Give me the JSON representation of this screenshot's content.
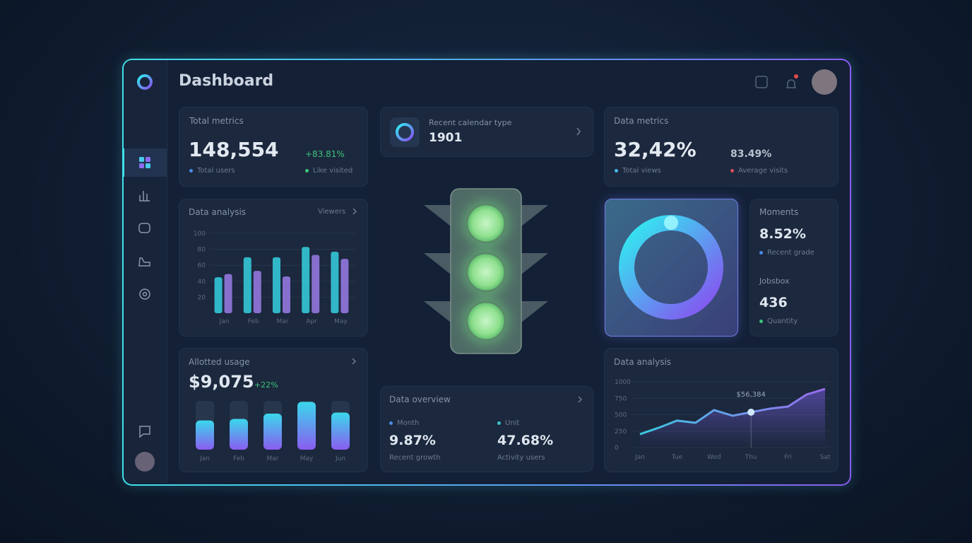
{
  "header": {
    "title": "Dashboard"
  },
  "total_metrics": {
    "title": "Total metrics",
    "value": "148,554",
    "change": "+83.81%",
    "legend": [
      "Total users",
      "Like visited"
    ]
  },
  "calendar": {
    "label": "Recent calendar type",
    "value": "1901"
  },
  "data_metrics": {
    "title": "Data metrics",
    "value": "32,42%",
    "secondary": "83.49%",
    "legend": [
      "Total views",
      "Average visits"
    ]
  },
  "analysis": {
    "title": "Data analysis",
    "link": "Viewers",
    "chart": {
      "type": "bar",
      "categories": [
        "Jan",
        "Feb",
        "Mar",
        "Apr",
        "May"
      ],
      "ylim": [
        0,
        100
      ],
      "yticks": [
        100,
        80,
        60,
        40,
        20
      ],
      "series": [
        {
          "color": "#35d0e0",
          "values": [
            45,
            70,
            70,
            83,
            77
          ]
        },
        {
          "color": "#9a7be8",
          "values": [
            49,
            53,
            46,
            73,
            68
          ]
        }
      ]
    }
  },
  "usage": {
    "title": "Allotted usage",
    "value": "$9,075",
    "change": "+22%",
    "chart": {
      "type": "bar",
      "categories": [
        "Jan",
        "Feb",
        "Mar",
        "May",
        "Jun"
      ],
      "ylim": [
        0,
        100
      ],
      "values": [
        60,
        63,
        74,
        98,
        76
      ]
    }
  },
  "overview": {
    "title": "Data overview",
    "items": [
      {
        "label": "Month",
        "value": "9.87%",
        "note": "Recent growth"
      },
      {
        "label": "Unit",
        "value": "47.68%",
        "note": "Activity users"
      }
    ]
  },
  "moments": {
    "title": "Moments",
    "value": "8.52%",
    "note": "Recent grade",
    "title2": "Jobsbox",
    "value2": "436",
    "note2": "Quantity"
  },
  "trend": {
    "title": "Data analysis",
    "annotation": "$56,384",
    "chart": {
      "type": "line",
      "categories": [
        "Jan",
        null,
        "Tue",
        null,
        "Wed",
        null,
        "Thu",
        null,
        "Fri",
        null,
        "Sat"
      ],
      "values": [
        204,
        300,
        410,
        376,
        570,
        484,
        538,
        591,
        624,
        806,
        892
      ],
      "ylim": [
        0,
        1000
      ],
      "yticks": [
        1000,
        750,
        500,
        250,
        0
      ],
      "highlight": 6
    }
  }
}
